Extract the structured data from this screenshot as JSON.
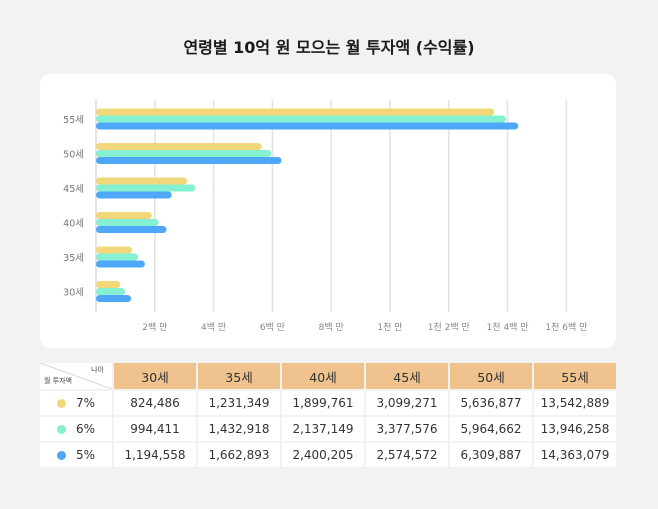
{
  "title": "연령별 10억 원 모으는 월 투자액 (수익률)",
  "chart_data": {
    "type": "bar",
    "orientation": "horizontal",
    "title": "연령별 10억 원 모으는 월 투자액 (수익률)",
    "categories": [
      "30세",
      "35세",
      "40세",
      "45세",
      "50세",
      "55세"
    ],
    "series": [
      {
        "name": "7%",
        "color": "#f2d77a",
        "values": [
          824486,
          1231349,
          1899761,
          3099271,
          5636877,
          13542889
        ]
      },
      {
        "name": "6%",
        "color": "#86f0d2",
        "values": [
          994411,
          1432918,
          2137149,
          3377576,
          5964662,
          13946258
        ]
      },
      {
        "name": "5%",
        "color": "#4fa8f7",
        "values": [
          1194558,
          1662893,
          2400205,
          2574572,
          6309887,
          14363079
        ]
      }
    ],
    "xlim": [
      0,
      16000000
    ],
    "xticks": [
      2000000,
      4000000,
      6000000,
      8000000,
      10000000,
      12000000,
      14000000,
      16000000
    ],
    "xtick_labels": [
      "2백 만",
      "4백 만",
      "6백 만",
      "8백 만",
      "1천 만",
      "1천 2백 만",
      "1천 4백 만",
      "1천 6백 만"
    ],
    "grid": true
  },
  "table": {
    "corner_top": "나이",
    "corner_bottom": "월 투자액",
    "headers": [
      "30세",
      "35세",
      "40세",
      "45세",
      "50세",
      "55세"
    ],
    "rows": [
      {
        "label": "7%",
        "color": "#f2d77a",
        "values": [
          "824,486",
          "1,231,349",
          "1,899,761",
          "3,099,271",
          "5,636,877",
          "13,542,889"
        ]
      },
      {
        "label": "6%",
        "color": "#86f0d2",
        "values": [
          "994,411",
          "1,432,918",
          "2,137,149",
          "3,377,576",
          "5,964,662",
          "13,946,258"
        ]
      },
      {
        "label": "5%",
        "color": "#4fa8f7",
        "values": [
          "1,194,558",
          "1,662,893",
          "2,400,205",
          "2,574,572",
          "6,309,887",
          "14,363,079"
        ]
      }
    ]
  }
}
